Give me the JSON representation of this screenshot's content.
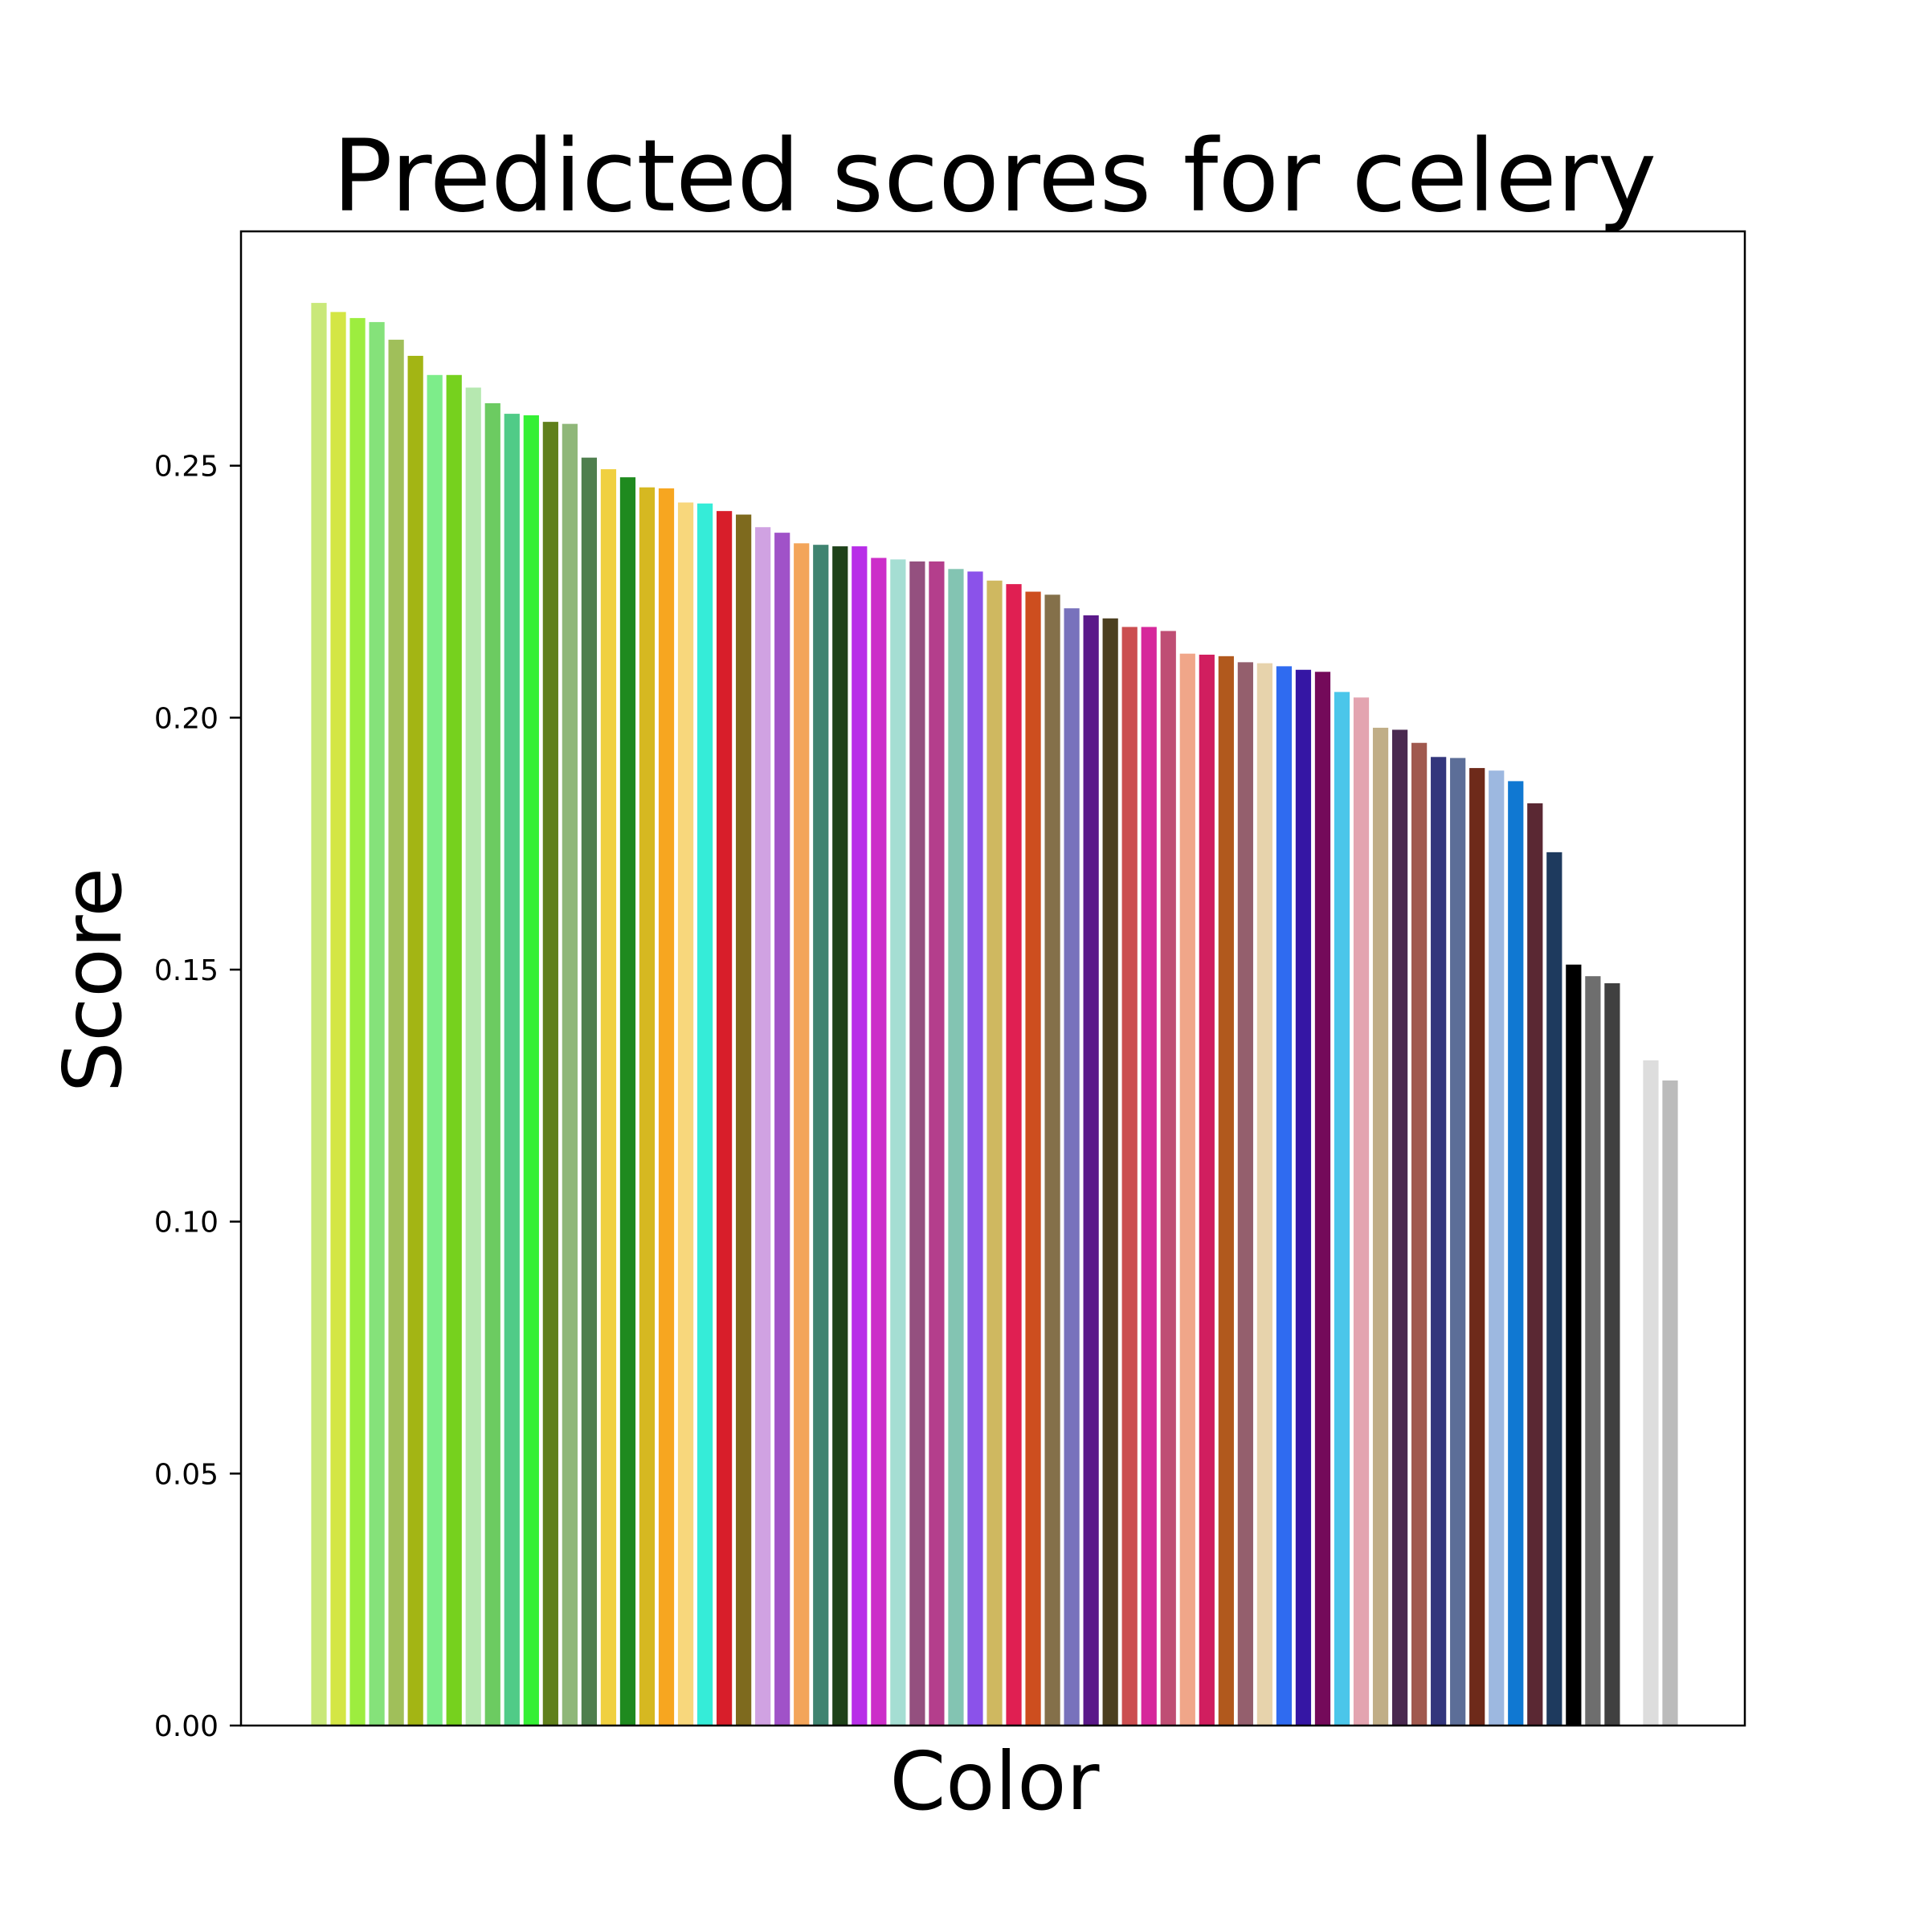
{
  "chart_data": {
    "type": "bar",
    "title": "Predicted scores for celery",
    "xlabel": "Color",
    "ylabel": "Score",
    "ylim": [
      0,
      0.2965
    ],
    "yticks": [
      "0.00",
      "0.05",
      "0.10",
      "0.15",
      "0.20",
      "0.25"
    ],
    "ytick_values": [
      0,
      0.05,
      0.1,
      0.15,
      0.2,
      0.25
    ],
    "xticks_shown": false,
    "grid": false,
    "legend": "none",
    "values": [
      0.2823,
      0.2805,
      0.2793,
      0.2785,
      0.275,
      0.2718,
      0.268,
      0.268,
      0.2655,
      0.2624,
      0.2603,
      0.26,
      0.2587,
      0.2583,
      0.2516,
      0.2493,
      0.2477,
      0.2457,
      0.2455,
      0.2427,
      0.2425,
      0.241,
      0.2403,
      0.2378,
      0.2367,
      0.2346,
      0.2343,
      0.234,
      0.234,
      0.2317,
      0.2314,
      0.231,
      0.231,
      0.2295,
      0.229,
      0.2272,
      0.2265,
      0.225,
      0.2244,
      0.2217,
      0.2203,
      0.2197,
      0.218,
      0.218,
      0.2172,
      0.2127,
      0.2125,
      0.2122,
      0.211,
      0.2108,
      0.2102,
      0.2095,
      0.2091,
      0.2051,
      0.204,
      0.198,
      0.1976,
      0.195,
      0.1922,
      0.192,
      0.19,
      0.1895,
      0.1874,
      0.183,
      0.1733,
      0.151,
      0.1487,
      0.1473,
      null,
      0.132,
      0.128
    ],
    "colors": [
      "#c9e87a",
      "#d4e645",
      "#9ded3f",
      "#85e27a",
      "#a0bf5a",
      "#a3b514",
      "#7ded8a",
      "#76d11e",
      "#b6e8b0",
      "#6ccb61",
      "#50cb87",
      "#35f035",
      "#60801c",
      "#8fb779",
      "#4f7f4e",
      "#f0d040",
      "#1f8a1f",
      "#d6b821",
      "#f7a620",
      "#f8d77c",
      "#35ecd8",
      "#d81e2a",
      "#7e6a1e",
      "#d0a2e2",
      "#a052c8",
      "#f3a55a",
      "#3f8370",
      "#1f421a",
      "#b82ee8",
      "#cc2ec9",
      "#a5ded3",
      "#94507f",
      "#b43e8c",
      "#83c4b2",
      "#8b52ea",
      "#cfb860",
      "#e01f52",
      "#cd4e1f",
      "#84704a",
      "#7872bc",
      "#5a1989",
      "#4c4020",
      "#cb4e50",
      "#d6289b",
      "#bf4e74",
      "#f0a689",
      "#d11e5f",
      "#b1591d",
      "#945f6d",
      "#e7d3ac",
      "#2f6bf0",
      "#3516a4",
      "#740a5a",
      "#4bc6ea",
      "#e3a4b0",
      "#c0ae87",
      "#4a2a50",
      "#a0594e",
      "#33367c",
      "#5c6e98",
      "#6e2a1a",
      "#9db8e0",
      "#1078d2",
      "#5a2833",
      "#1e3a5e",
      "#000000",
      "#6e6e6e",
      "#404040",
      "#ffffff",
      "#dddddd",
      "#bbbbbb"
    ]
  }
}
